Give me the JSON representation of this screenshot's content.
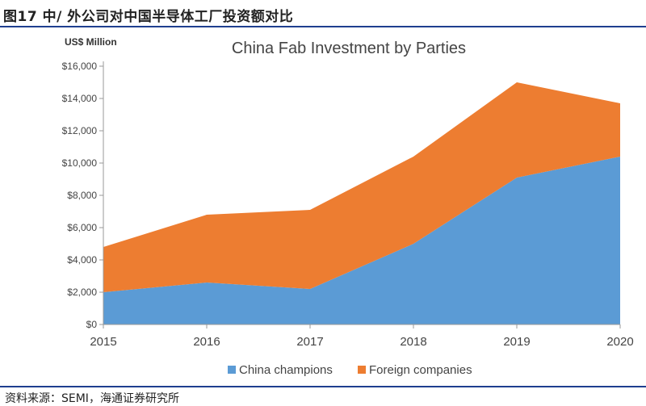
{
  "figure": {
    "label": "图17  中/ 外公司对中国半导体工厂投资额对比",
    "source": "资料来源：SEMI，海通证券研究所"
  },
  "chart_data": {
    "type": "area",
    "stacked": true,
    "title": "China Fab Investment by Parties",
    "unit_label": "US$ Million",
    "x": [
      "2015",
      "2016",
      "2017",
      "2018",
      "2019",
      "2020"
    ],
    "ylim": [
      0,
      16000
    ],
    "y_ticks": [
      "$0",
      "$2,000",
      "$4,000",
      "$6,000",
      "$8,000",
      "$10,000",
      "$12,000",
      "$14,000",
      "$16,000"
    ],
    "grid": false,
    "legend_position": "bottom",
    "series": [
      {
        "name": "China champions",
        "color": "#5b9bd5",
        "values": [
          2000,
          2600,
          2200,
          5000,
          9100,
          10400
        ]
      },
      {
        "name": "Foreign companies",
        "color": "#ed7d31",
        "values": [
          2800,
          4200,
          4900,
          5400,
          5900,
          3300
        ]
      }
    ]
  }
}
